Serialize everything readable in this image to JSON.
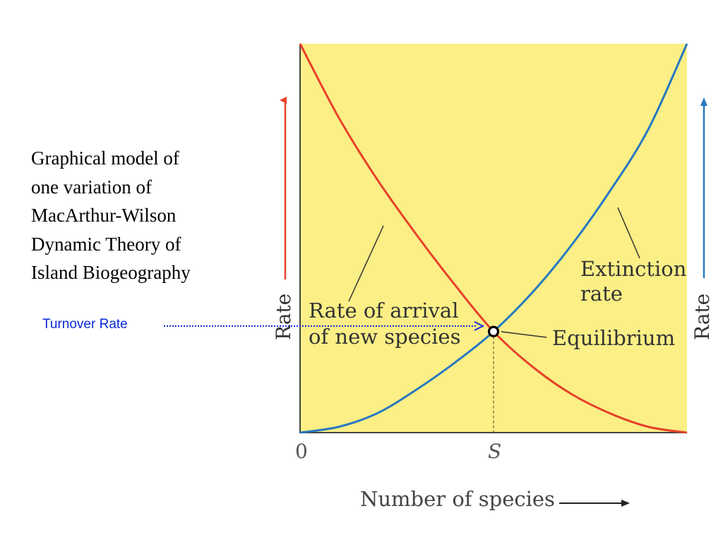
{
  "caption": {
    "lines": [
      "Graphical model of",
      "one variation of",
      "MacArthur-Wilson",
      "Dynamic Theory of",
      "Island Biogeography"
    ]
  },
  "turnover_label": "Turnover Rate",
  "colors": {
    "plot_background": "#fbef86",
    "arrival_curve": "#e8402a",
    "extinction_curve": "#2878c0",
    "turnover_arrow": "#1a2cd8"
  },
  "chart_data": {
    "type": "line",
    "title": "",
    "xlabel": "Number of species",
    "ylabel_left": "Rate",
    "ylabel_right": "Rate",
    "x_tick_labels": [
      "0",
      "S"
    ],
    "xlim": [
      0,
      1
    ],
    "ylim": [
      0,
      1
    ],
    "equilibrium": {
      "x": 0.5,
      "y": 0.26,
      "label": "Equilibrium"
    },
    "series": [
      {
        "name": "Rate of arrival of new species",
        "label_lines": [
          "Rate of arrival",
          "of new species"
        ],
        "x": [
          0,
          0.1,
          0.2,
          0.3,
          0.4,
          0.5,
          0.6,
          0.7,
          0.8,
          0.9,
          1.0
        ],
        "y": [
          1.0,
          0.81,
          0.65,
          0.51,
          0.38,
          0.26,
          0.17,
          0.1,
          0.05,
          0.015,
          0
        ]
      },
      {
        "name": "Extinction rate",
        "label_lines": [
          "Extinction",
          "rate"
        ],
        "x": [
          0,
          0.1,
          0.2,
          0.3,
          0.4,
          0.5,
          0.6,
          0.7,
          0.8,
          0.9,
          1.0
        ],
        "y": [
          0,
          0.015,
          0.05,
          0.11,
          0.18,
          0.26,
          0.36,
          0.48,
          0.62,
          0.78,
          1.0
        ]
      }
    ]
  }
}
